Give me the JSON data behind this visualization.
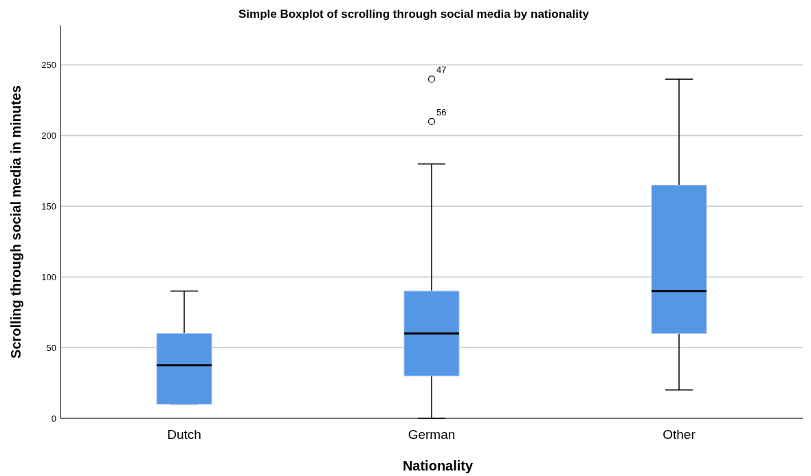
{
  "chart_data": {
    "type": "box",
    "title": "Simple Boxplot of scrolling through social media by nationality",
    "xlabel": "Nationality",
    "ylabel": "Scrolling through social media in minutes",
    "categories": [
      "Dutch",
      "German",
      "Other"
    ],
    "boxes": [
      {
        "low": 10,
        "q1": 10,
        "median": 37.5,
        "q3": 60,
        "high": 90
      },
      {
        "low": 0,
        "q1": 30,
        "median": 60,
        "q3": 90,
        "high": 180,
        "outliers": [
          240,
          210
        ]
      },
      {
        "low": 20,
        "q1": 60,
        "median": 90,
        "q3": 165,
        "high": 240
      }
    ],
    "color": "#5597e4",
    "ylim": [
      0,
      278
    ],
    "yticks": [
      0,
      50,
      100,
      150,
      200,
      250
    ],
    "grid": "y",
    "annotations": [
      "47",
      "56"
    ]
  }
}
